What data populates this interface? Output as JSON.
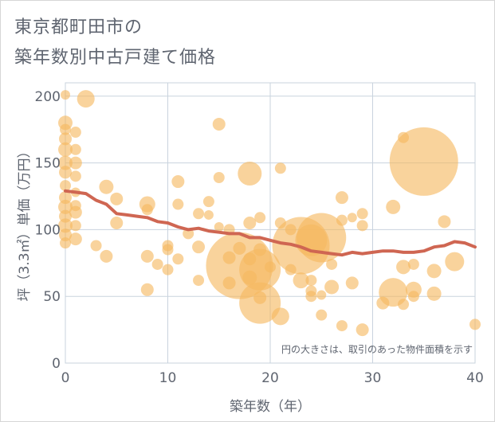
{
  "title_line1": "東京都町田市の",
  "title_line2": "築年数別中古戸建て価格",
  "chart_data": {
    "type": "scatter",
    "xlabel": "築年数（年）",
    "ylabel": "坪（3.3㎡）単価（万円）",
    "xlim": [
      0,
      40
    ],
    "ylim": [
      0,
      210
    ],
    "xticks": [
      "0",
      "10",
      "20",
      "30",
      "40"
    ],
    "yticks": [
      "0",
      "50",
      "100",
      "150",
      "200"
    ],
    "grid": true,
    "note": "円の大きさは、取引のあった物件面積を示す",
    "bubble_color": "#f5b860",
    "line_color": "#cf6652",
    "points": [
      {
        "x": 0,
        "y": 201,
        "s": 6
      },
      {
        "x": 0,
        "y": 180,
        "s": 9
      },
      {
        "x": 0,
        "y": 175,
        "s": 7
      },
      {
        "x": 0,
        "y": 168,
        "s": 8
      },
      {
        "x": 0,
        "y": 160,
        "s": 9
      },
      {
        "x": 0,
        "y": 150,
        "s": 9
      },
      {
        "x": 0,
        "y": 143,
        "s": 8
      },
      {
        "x": 0,
        "y": 133,
        "s": 7
      },
      {
        "x": 0,
        "y": 124,
        "s": 8
      },
      {
        "x": 0,
        "y": 117,
        "s": 9
      },
      {
        "x": 0,
        "y": 110,
        "s": 8
      },
      {
        "x": 0,
        "y": 103,
        "s": 9
      },
      {
        "x": 0,
        "y": 96,
        "s": 8
      },
      {
        "x": 0,
        "y": 90,
        "s": 7
      },
      {
        "x": 1,
        "y": 173,
        "s": 7
      },
      {
        "x": 1,
        "y": 160,
        "s": 7
      },
      {
        "x": 1,
        "y": 150,
        "s": 8
      },
      {
        "x": 1,
        "y": 140,
        "s": 7
      },
      {
        "x": 1,
        "y": 128,
        "s": 6
      },
      {
        "x": 1,
        "y": 118,
        "s": 7
      },
      {
        "x": 1,
        "y": 113,
        "s": 8
      },
      {
        "x": 1,
        "y": 103,
        "s": 7
      },
      {
        "x": 1,
        "y": 93,
        "s": 8
      },
      {
        "x": 2,
        "y": 198,
        "s": 11
      },
      {
        "x": 3,
        "y": 88,
        "s": 7
      },
      {
        "x": 4,
        "y": 132,
        "s": 9
      },
      {
        "x": 4,
        "y": 80,
        "s": 8
      },
      {
        "x": 5,
        "y": 123,
        "s": 8
      },
      {
        "x": 5,
        "y": 105,
        "s": 8
      },
      {
        "x": 8,
        "y": 119,
        "s": 10
      },
      {
        "x": 8,
        "y": 115,
        "s": 7
      },
      {
        "x": 8,
        "y": 80,
        "s": 8
      },
      {
        "x": 8,
        "y": 55,
        "s": 8
      },
      {
        "x": 9,
        "y": 74,
        "s": 7
      },
      {
        "x": 10,
        "y": 88,
        "s": 7
      },
      {
        "x": 10,
        "y": 85,
        "s": 7
      },
      {
        "x": 10,
        "y": 70,
        "s": 7
      },
      {
        "x": 11,
        "y": 136,
        "s": 8
      },
      {
        "x": 11,
        "y": 119,
        "s": 7
      },
      {
        "x": 11,
        "y": 78,
        "s": 7
      },
      {
        "x": 12,
        "y": 97,
        "s": 7
      },
      {
        "x": 13,
        "y": 112,
        "s": 7
      },
      {
        "x": 13,
        "y": 87,
        "s": 8
      },
      {
        "x": 13,
        "y": 62,
        "s": 7
      },
      {
        "x": 14,
        "y": 121,
        "s": 7
      },
      {
        "x": 14,
        "y": 111,
        "s": 6
      },
      {
        "x": 15,
        "y": 179,
        "s": 8
      },
      {
        "x": 15,
        "y": 139,
        "s": 7
      },
      {
        "x": 15,
        "y": 102,
        "s": 6
      },
      {
        "x": 16,
        "y": 100,
        "s": 7
      },
      {
        "x": 16,
        "y": 79,
        "s": 8
      },
      {
        "x": 16,
        "y": 60,
        "s": 8
      },
      {
        "x": 17,
        "y": 73,
        "s": 42
      },
      {
        "x": 17,
        "y": 86,
        "s": 8
      },
      {
        "x": 18,
        "y": 142,
        "s": 15
      },
      {
        "x": 18,
        "y": 105,
        "s": 8
      },
      {
        "x": 18,
        "y": 78,
        "s": 8
      },
      {
        "x": 18,
        "y": 64,
        "s": 9
      },
      {
        "x": 19,
        "y": 109,
        "s": 7
      },
      {
        "x": 19,
        "y": 85,
        "s": 8
      },
      {
        "x": 19,
        "y": 70,
        "s": 26
      },
      {
        "x": 19,
        "y": 45,
        "s": 26
      },
      {
        "x": 19,
        "y": 49,
        "s": 8
      },
      {
        "x": 20,
        "y": 72,
        "s": 7
      },
      {
        "x": 21,
        "y": 146,
        "s": 7
      },
      {
        "x": 21,
        "y": 105,
        "s": 7
      },
      {
        "x": 21,
        "y": 35,
        "s": 11
      },
      {
        "x": 22,
        "y": 100,
        "s": 7
      },
      {
        "x": 22,
        "y": 70,
        "s": 7
      },
      {
        "x": 23,
        "y": 88,
        "s": 36
      },
      {
        "x": 23,
        "y": 62,
        "s": 10
      },
      {
        "x": 24,
        "y": 92,
        "s": 20
      },
      {
        "x": 24,
        "y": 62,
        "s": 7
      },
      {
        "x": 24,
        "y": 54,
        "s": 7
      },
      {
        "x": 24,
        "y": 50,
        "s": 7
      },
      {
        "x": 25,
        "y": 94,
        "s": 31
      },
      {
        "x": 25,
        "y": 51,
        "s": 6
      },
      {
        "x": 25,
        "y": 36,
        "s": 7
      },
      {
        "x": 26,
        "y": 74,
        "s": 7
      },
      {
        "x": 26,
        "y": 57,
        "s": 9
      },
      {
        "x": 27,
        "y": 124,
        "s": 8
      },
      {
        "x": 27,
        "y": 107,
        "s": 7
      },
      {
        "x": 27,
        "y": 28,
        "s": 7
      },
      {
        "x": 28,
        "y": 109,
        "s": 6
      },
      {
        "x": 28,
        "y": 60,
        "s": 8
      },
      {
        "x": 29,
        "y": 112,
        "s": 7
      },
      {
        "x": 29,
        "y": 103,
        "s": 7
      },
      {
        "x": 29,
        "y": 25,
        "s": 8
      },
      {
        "x": 31,
        "y": 45,
        "s": 8
      },
      {
        "x": 32,
        "y": 117,
        "s": 9
      },
      {
        "x": 32,
        "y": 53,
        "s": 18
      },
      {
        "x": 33,
        "y": 169,
        "s": 7
      },
      {
        "x": 33,
        "y": 72,
        "s": 9
      },
      {
        "x": 33,
        "y": 44,
        "s": 7
      },
      {
        "x": 34,
        "y": 74,
        "s": 7
      },
      {
        "x": 34,
        "y": 55,
        "s": 10
      },
      {
        "x": 34,
        "y": 50,
        "s": 7
      },
      {
        "x": 35,
        "y": 151,
        "s": 43
      },
      {
        "x": 36,
        "y": 69,
        "s": 9
      },
      {
        "x": 36,
        "y": 52,
        "s": 9
      },
      {
        "x": 37,
        "y": 106,
        "s": 8
      },
      {
        "x": 38,
        "y": 76,
        "s": 12
      },
      {
        "x": 40,
        "y": 29,
        "s": 7
      }
    ],
    "trend": [
      {
        "x": 0,
        "y": 129
      },
      {
        "x": 1,
        "y": 128
      },
      {
        "x": 2,
        "y": 127
      },
      {
        "x": 3,
        "y": 122
      },
      {
        "x": 4,
        "y": 119
      },
      {
        "x": 5,
        "y": 112
      },
      {
        "x": 6,
        "y": 111
      },
      {
        "x": 7,
        "y": 110
      },
      {
        "x": 8,
        "y": 109
      },
      {
        "x": 9,
        "y": 106
      },
      {
        "x": 10,
        "y": 105
      },
      {
        "x": 11,
        "y": 102
      },
      {
        "x": 12,
        "y": 100
      },
      {
        "x": 13,
        "y": 101
      },
      {
        "x": 14,
        "y": 99
      },
      {
        "x": 15,
        "y": 98
      },
      {
        "x": 16,
        "y": 97
      },
      {
        "x": 17,
        "y": 97
      },
      {
        "x": 18,
        "y": 94
      },
      {
        "x": 19,
        "y": 94
      },
      {
        "x": 20,
        "y": 92
      },
      {
        "x": 21,
        "y": 90
      },
      {
        "x": 22,
        "y": 89
      },
      {
        "x": 23,
        "y": 87
      },
      {
        "x": 24,
        "y": 84
      },
      {
        "x": 25,
        "y": 83
      },
      {
        "x": 26,
        "y": 82
      },
      {
        "x": 27,
        "y": 81
      },
      {
        "x": 28,
        "y": 83
      },
      {
        "x": 29,
        "y": 82
      },
      {
        "x": 30,
        "y": 83
      },
      {
        "x": 31,
        "y": 84
      },
      {
        "x": 32,
        "y": 84
      },
      {
        "x": 33,
        "y": 83
      },
      {
        "x": 34,
        "y": 83
      },
      {
        "x": 35,
        "y": 84
      },
      {
        "x": 36,
        "y": 87
      },
      {
        "x": 37,
        "y": 88
      },
      {
        "x": 38,
        "y": 91
      },
      {
        "x": 39,
        "y": 90
      },
      {
        "x": 40,
        "y": 87
      }
    ]
  }
}
